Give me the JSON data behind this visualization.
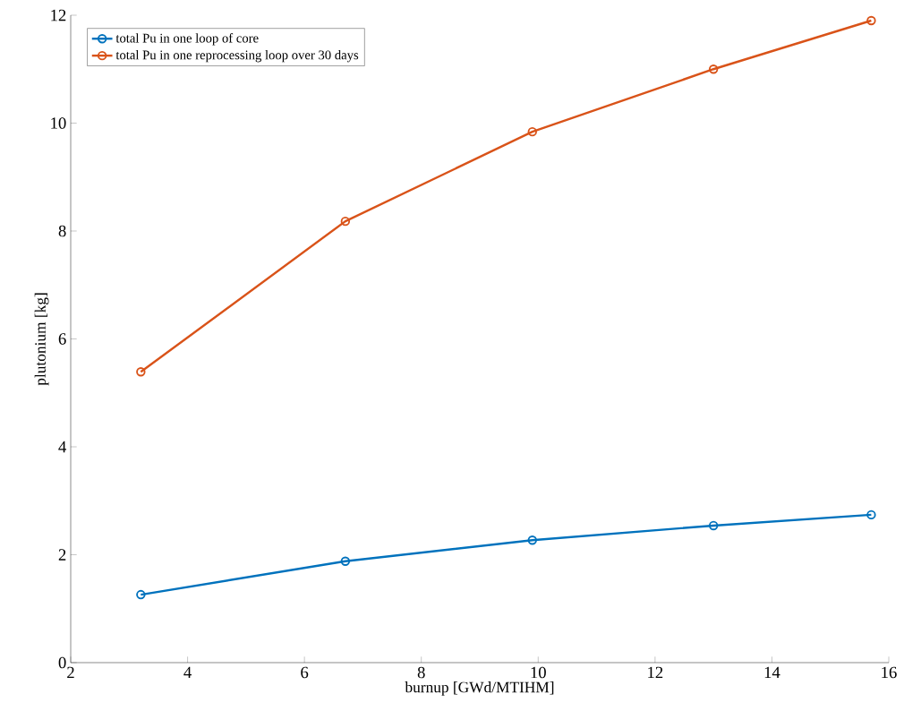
{
  "chart_data": {
    "type": "line",
    "xlabel": "burnup [GWd/MTIHM]",
    "ylabel": "plutonium [kg]",
    "x": [
      3.2,
      6.7,
      9.9,
      13.0,
      15.7
    ],
    "series": [
      {
        "name": "total Pu in one loop of core",
        "color": "#0072bd",
        "values": [
          1.26,
          1.88,
          2.27,
          2.54,
          2.74
        ]
      },
      {
        "name": "total Pu in one reprocessing loop over 30 days",
        "color": "#d95319",
        "values": [
          5.39,
          8.18,
          9.84,
          11.0,
          11.9
        ]
      }
    ],
    "xlim": [
      2,
      16
    ],
    "ylim": [
      0,
      12
    ],
    "xticks": [
      2,
      4,
      6,
      8,
      10,
      12,
      14,
      16
    ],
    "yticks": [
      0,
      2,
      4,
      6,
      8,
      10,
      12
    ],
    "legend": "top left",
    "marker": "circle",
    "line_style": "solid",
    "grid": false
  }
}
